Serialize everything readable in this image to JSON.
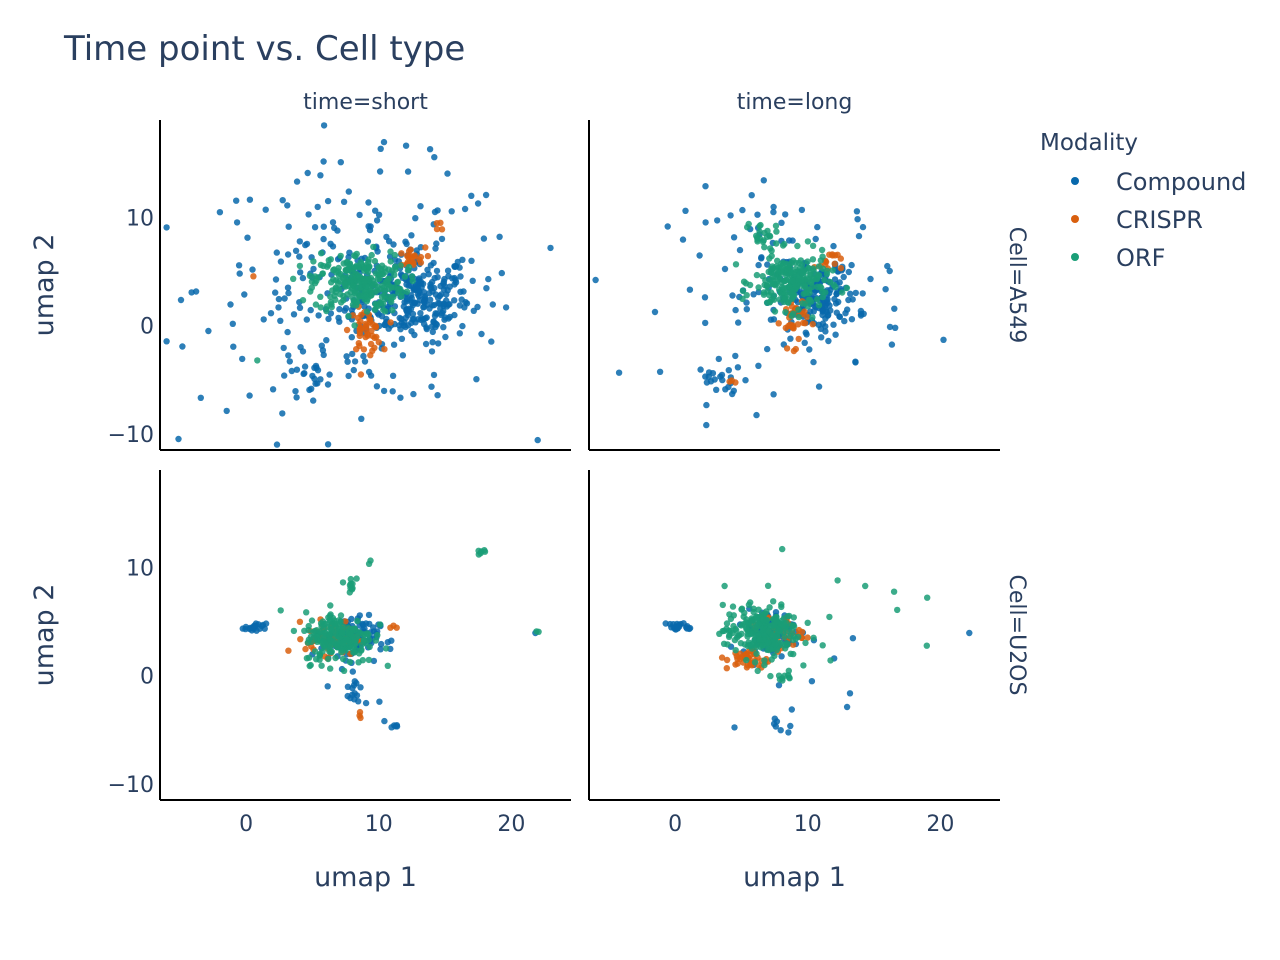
{
  "chart_data": {
    "type": "scatter",
    "title": "Time point vs. Cell type",
    "xlabel": "umap 1",
    "ylabel": "umap 2",
    "xlim": [
      -6.5,
      24.5
    ],
    "ylim": [
      -11.5,
      19
    ],
    "x_ticks": [
      0,
      10,
      20
    ],
    "y_ticks": [
      -10,
      0,
      10
    ],
    "tick_labels": {
      "x": [
        "0",
        "10",
        "20"
      ],
      "y": [
        "−10",
        "0",
        "10"
      ]
    },
    "legend": {
      "title": "Modality",
      "position": "right"
    },
    "series": [
      {
        "name": "Compound",
        "color": "#0868ac"
      },
      {
        "name": "CRISPR",
        "color": "#d95f0e"
      },
      {
        "name": "ORF",
        "color": "#1a9e77"
      }
    ],
    "facet_col": {
      "labels": [
        "time=short",
        "time=long"
      ]
    },
    "facet_row": {
      "labels": [
        "Cell=A549",
        "Cell=U2OS"
      ]
    },
    "grid": false,
    "panels": [
      {
        "id": "A549-short",
        "clusters": [
          {
            "series": "Compound",
            "center": [
              12.5,
              2.5
            ],
            "sd": [
              2.2,
              2.0
            ],
            "n": 260
          },
          {
            "series": "Compound",
            "center": [
              8.5,
              3.5
            ],
            "sd": [
              6.0,
              5.5
            ],
            "n": 240
          },
          {
            "series": "Compound",
            "center": [
              5.0,
              -5.0
            ],
            "sd": [
              0.9,
              0.8
            ],
            "n": 20
          },
          {
            "series": "CRISPR",
            "center": [
              9.0,
              -0.5
            ],
            "sd": [
              0.6,
              1.0
            ],
            "n": 45
          },
          {
            "series": "CRISPR",
            "center": [
              12.3,
              6.2
            ],
            "sd": [
              0.6,
              0.5
            ],
            "n": 20
          },
          {
            "series": "CRISPR",
            "center": [
              14.5,
              9.0
            ],
            "sd": [
              0.3,
              0.3
            ],
            "n": 4
          },
          {
            "series": "CRISPR",
            "center": [
              0.5,
              4.5
            ],
            "sd": [
              0.1,
              0.1
            ],
            "n": 1
          },
          {
            "series": "ORF",
            "center": [
              8.5,
              4.0
            ],
            "sd": [
              1.7,
              1.4
            ],
            "n": 260
          },
          {
            "series": "ORF",
            "center": [
              0.8,
              -3.2
            ],
            "sd": [
              0.1,
              0.1
            ],
            "n": 1
          }
        ]
      },
      {
        "id": "A549-long",
        "clusters": [
          {
            "series": "Compound",
            "center": [
              10.8,
              2.5
            ],
            "sd": [
              1.5,
              1.5
            ],
            "n": 160
          },
          {
            "series": "Compound",
            "center": [
              8.5,
              3.5
            ],
            "sd": [
              4.5,
              4.5
            ],
            "n": 110
          },
          {
            "series": "Compound",
            "center": [
              3.5,
              -5.0
            ],
            "sd": [
              0.9,
              0.8
            ],
            "n": 20
          },
          {
            "series": "CRISPR",
            "center": [
              9.0,
              0.5
            ],
            "sd": [
              0.5,
              1.2
            ],
            "n": 35
          },
          {
            "series": "CRISPR",
            "center": [
              11.5,
              6.0
            ],
            "sd": [
              0.5,
              0.5
            ],
            "n": 15
          },
          {
            "series": "CRISPR",
            "center": [
              4.3,
              -5.2
            ],
            "sd": [
              0.2,
              0.2
            ],
            "n": 3
          },
          {
            "series": "ORF",
            "center": [
              8.8,
              4.0
            ],
            "sd": [
              1.4,
              1.3
            ],
            "n": 230
          },
          {
            "series": "ORF",
            "center": [
              6.5,
              8.5
            ],
            "sd": [
              0.6,
              0.5
            ],
            "n": 20
          }
        ]
      },
      {
        "id": "U2OS-short",
        "clusters": [
          {
            "series": "Compound",
            "center": [
              7.8,
              3.5
            ],
            "sd": [
              1.1,
              1.0
            ],
            "n": 110
          },
          {
            "series": "Compound",
            "center": [
              0.7,
              4.4
            ],
            "sd": [
              0.4,
              0.2
            ],
            "n": 20
          },
          {
            "series": "Compound",
            "center": [
              8.0,
              -1.0
            ],
            "sd": [
              0.3,
              1.0
            ],
            "n": 15
          },
          {
            "series": "Compound",
            "center": [
              7.8,
              -2.5
            ],
            "sd": [
              3.0,
              3.5
            ],
            "n": 8
          },
          {
            "series": "Compound",
            "center": [
              11.3,
              -4.5
            ],
            "sd": [
              0.2,
              0.2
            ],
            "n": 5
          },
          {
            "series": "Compound",
            "center": [
              22.0,
              3.9
            ],
            "sd": [
              0.1,
              0.1
            ],
            "n": 1
          },
          {
            "series": "CRISPR",
            "center": [
              6.5,
              3.5
            ],
            "sd": [
              1.0,
              0.8
            ],
            "n": 70
          },
          {
            "series": "CRISPR",
            "center": [
              8.5,
              -3.8
            ],
            "sd": [
              0.2,
              0.2
            ],
            "n": 3
          },
          {
            "series": "CRISPR",
            "center": [
              11.0,
              4.5
            ],
            "sd": [
              0.2,
              0.2
            ],
            "n": 3
          },
          {
            "series": "ORF",
            "center": [
              7.0,
              3.5
            ],
            "sd": [
              1.3,
              1.2
            ],
            "n": 200
          },
          {
            "series": "ORF",
            "center": [
              8.0,
              8.5
            ],
            "sd": [
              0.3,
              0.3
            ],
            "n": 10
          },
          {
            "series": "ORF",
            "center": [
              17.7,
              11.5
            ],
            "sd": [
              0.2,
              0.15
            ],
            "n": 6
          },
          {
            "series": "ORF",
            "center": [
              22.0,
              3.9
            ],
            "sd": [
              0.1,
              0.1
            ],
            "n": 2
          },
          {
            "series": "ORF",
            "center": [
              9.5,
              10.5
            ],
            "sd": [
              0.2,
              0.2
            ],
            "n": 2
          }
        ]
      },
      {
        "id": "U2OS-long",
        "clusters": [
          {
            "series": "Compound",
            "center": [
              7.0,
              4.0
            ],
            "sd": [
              1.0,
              1.0
            ],
            "n": 90
          },
          {
            "series": "Compound",
            "center": [
              0.5,
              4.5
            ],
            "sd": [
              0.5,
              0.2
            ],
            "n": 20
          },
          {
            "series": "Compound",
            "center": [
              8.0,
              -4.5
            ],
            "sd": [
              0.5,
              0.5
            ],
            "n": 8
          },
          {
            "series": "Compound",
            "center": [
              12.0,
              -1.0
            ],
            "sd": [
              4.0,
              3.5
            ],
            "n": 8
          },
          {
            "series": "Compound",
            "center": [
              22.0,
              3.9
            ],
            "sd": [
              0.1,
              0.1
            ],
            "n": 1
          },
          {
            "series": "CRISPR",
            "center": [
              5.5,
              1.5
            ],
            "sd": [
              0.8,
              0.5
            ],
            "n": 40
          },
          {
            "series": "CRISPR",
            "center": [
              7.5,
              4.0
            ],
            "sd": [
              1.0,
              0.8
            ],
            "n": 40
          },
          {
            "series": "ORF",
            "center": [
              6.5,
              4.0
            ],
            "sd": [
              1.4,
              1.2
            ],
            "n": 230
          },
          {
            "series": "ORF",
            "center": [
              8.0,
              0.0
            ],
            "sd": [
              0.5,
              0.5
            ],
            "n": 10
          },
          {
            "series": "ORF",
            "center": [
              13.0,
              7.0
            ],
            "sd": [
              2.5,
              2.5
            ],
            "n": 10
          }
        ]
      }
    ]
  }
}
